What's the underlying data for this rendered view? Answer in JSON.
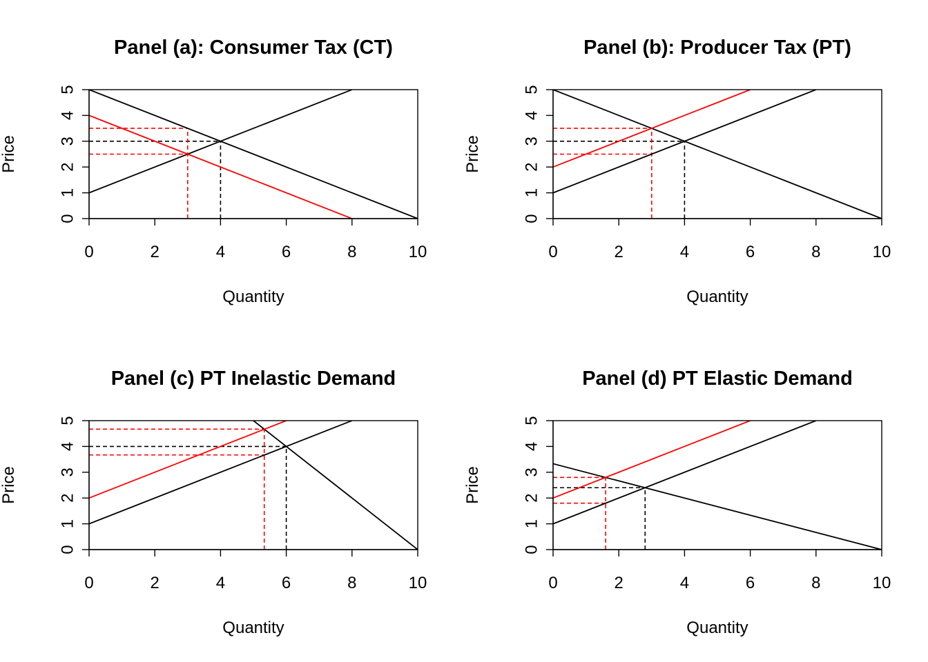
{
  "chart_data": [
    {
      "type": "line",
      "title": "Panel (a): Consumer Tax (CT)",
      "xlabel": "Quantity",
      "ylabel": "Price",
      "xlim": [
        0,
        10
      ],
      "ylim": [
        0,
        5
      ],
      "xticks": [
        0,
        2,
        4,
        6,
        8,
        10
      ],
      "yticks": [
        0,
        1,
        2,
        3,
        4,
        5
      ],
      "series": [
        {
          "id": "demand",
          "color": "#000000",
          "style": "solid",
          "x": [
            0,
            10
          ],
          "y": [
            5,
            0
          ]
        },
        {
          "id": "supply",
          "color": "#000000",
          "style": "solid",
          "x": [
            0,
            8
          ],
          "y": [
            1,
            5
          ]
        },
        {
          "id": "demand-after-tax",
          "color": "#ff0000",
          "style": "solid",
          "x": [
            0,
            8
          ],
          "y": [
            4,
            0
          ]
        }
      ],
      "guides": [
        {
          "id": "eq-price",
          "color": "#000000",
          "x": [
            0,
            4
          ],
          "y": [
            3,
            3
          ]
        },
        {
          "id": "eq-quantity",
          "color": "#000000",
          "x": [
            4,
            4
          ],
          "y": [
            0,
            3
          ]
        },
        {
          "id": "buyer-price",
          "color": "#ff0000",
          "x": [
            0,
            3
          ],
          "y": [
            3.5,
            3.5
          ]
        },
        {
          "id": "seller-price",
          "color": "#ff0000",
          "x": [
            0,
            3
          ],
          "y": [
            2.5,
            2.5
          ]
        },
        {
          "id": "tax-quantity",
          "color": "#ff0000",
          "x": [
            3,
            3
          ],
          "y": [
            0,
            3.5
          ]
        }
      ]
    },
    {
      "type": "line",
      "title": "Panel (b): Producer Tax (PT)",
      "xlabel": "Quantity",
      "ylabel": "Price",
      "xlim": [
        0,
        10
      ],
      "ylim": [
        0,
        5
      ],
      "xticks": [
        0,
        2,
        4,
        6,
        8,
        10
      ],
      "yticks": [
        0,
        1,
        2,
        3,
        4,
        5
      ],
      "series": [
        {
          "id": "demand",
          "color": "#000000",
          "style": "solid",
          "x": [
            0,
            10
          ],
          "y": [
            5,
            0
          ]
        },
        {
          "id": "supply",
          "color": "#000000",
          "style": "solid",
          "x": [
            0,
            8
          ],
          "y": [
            1,
            5
          ]
        },
        {
          "id": "supply-after-tax",
          "color": "#ff0000",
          "style": "solid",
          "x": [
            0,
            6
          ],
          "y": [
            2,
            5
          ]
        }
      ],
      "guides": [
        {
          "id": "eq-price",
          "color": "#000000",
          "x": [
            0,
            4
          ],
          "y": [
            3,
            3
          ]
        },
        {
          "id": "eq-quantity",
          "color": "#000000",
          "x": [
            4,
            4
          ],
          "y": [
            0,
            3
          ]
        },
        {
          "id": "buyer-price",
          "color": "#ff0000",
          "x": [
            0,
            3
          ],
          "y": [
            3.5,
            3.5
          ]
        },
        {
          "id": "seller-price",
          "color": "#ff0000",
          "x": [
            0,
            3
          ],
          "y": [
            2.5,
            2.5
          ]
        },
        {
          "id": "tax-quantity",
          "color": "#ff0000",
          "x": [
            3,
            3
          ],
          "y": [
            0,
            3.5
          ]
        }
      ]
    },
    {
      "type": "line",
      "title": "Panel (c) PT Inelastic Demand",
      "xlabel": "Quantity",
      "ylabel": "Price",
      "xlim": [
        0,
        10
      ],
      "ylim": [
        0,
        5
      ],
      "xticks": [
        0,
        2,
        4,
        6,
        8,
        10
      ],
      "yticks": [
        0,
        1,
        2,
        3,
        4,
        5
      ],
      "series": [
        {
          "id": "demand",
          "color": "#000000",
          "style": "solid",
          "x": [
            5,
            10
          ],
          "y": [
            5,
            0
          ]
        },
        {
          "id": "supply",
          "color": "#000000",
          "style": "solid",
          "x": [
            0,
            8
          ],
          "y": [
            1,
            5
          ]
        },
        {
          "id": "supply-after-tax",
          "color": "#ff0000",
          "style": "solid",
          "x": [
            0,
            6
          ],
          "y": [
            2,
            5
          ]
        }
      ],
      "guides": [
        {
          "id": "eq-price",
          "color": "#000000",
          "x": [
            0,
            6
          ],
          "y": [
            4,
            4
          ]
        },
        {
          "id": "eq-quantity",
          "color": "#000000",
          "x": [
            6,
            6
          ],
          "y": [
            0,
            4
          ]
        },
        {
          "id": "buyer-price",
          "color": "#ff0000",
          "x": [
            0,
            5.33
          ],
          "y": [
            4.67,
            4.67
          ]
        },
        {
          "id": "seller-price",
          "color": "#ff0000",
          "x": [
            0,
            5.33
          ],
          "y": [
            3.67,
            3.67
          ]
        },
        {
          "id": "tax-quantity",
          "color": "#ff0000",
          "x": [
            5.33,
            5.33
          ],
          "y": [
            0,
            4.67
          ]
        }
      ]
    },
    {
      "type": "line",
      "title": "Panel (d) PT Elastic Demand",
      "xlabel": "Quantity",
      "ylabel": "Price",
      "xlim": [
        0,
        10
      ],
      "ylim": [
        0,
        5
      ],
      "xticks": [
        0,
        2,
        4,
        6,
        8,
        10
      ],
      "yticks": [
        0,
        1,
        2,
        3,
        4,
        5
      ],
      "series": [
        {
          "id": "demand",
          "color": "#000000",
          "style": "solid",
          "x": [
            0,
            10
          ],
          "y": [
            3.33,
            0
          ]
        },
        {
          "id": "supply",
          "color": "#000000",
          "style": "solid",
          "x": [
            0,
            8
          ],
          "y": [
            1,
            5
          ]
        },
        {
          "id": "supply-after-tax",
          "color": "#ff0000",
          "style": "solid",
          "x": [
            0,
            6
          ],
          "y": [
            2,
            5
          ]
        }
      ],
      "guides": [
        {
          "id": "eq-price",
          "color": "#000000",
          "x": [
            0,
            2.8
          ],
          "y": [
            2.4,
            2.4
          ]
        },
        {
          "id": "eq-quantity",
          "color": "#000000",
          "x": [
            2.8,
            2.8
          ],
          "y": [
            0,
            2.4
          ]
        },
        {
          "id": "buyer-price",
          "color": "#ff0000",
          "x": [
            0,
            1.6
          ],
          "y": [
            2.8,
            2.8
          ]
        },
        {
          "id": "seller-price",
          "color": "#ff0000",
          "x": [
            0,
            1.6
          ],
          "y": [
            1.8,
            1.8
          ]
        },
        {
          "id": "tax-quantity",
          "color": "#ff0000",
          "x": [
            1.6,
            1.6
          ],
          "y": [
            0,
            2.8
          ]
        }
      ]
    }
  ]
}
